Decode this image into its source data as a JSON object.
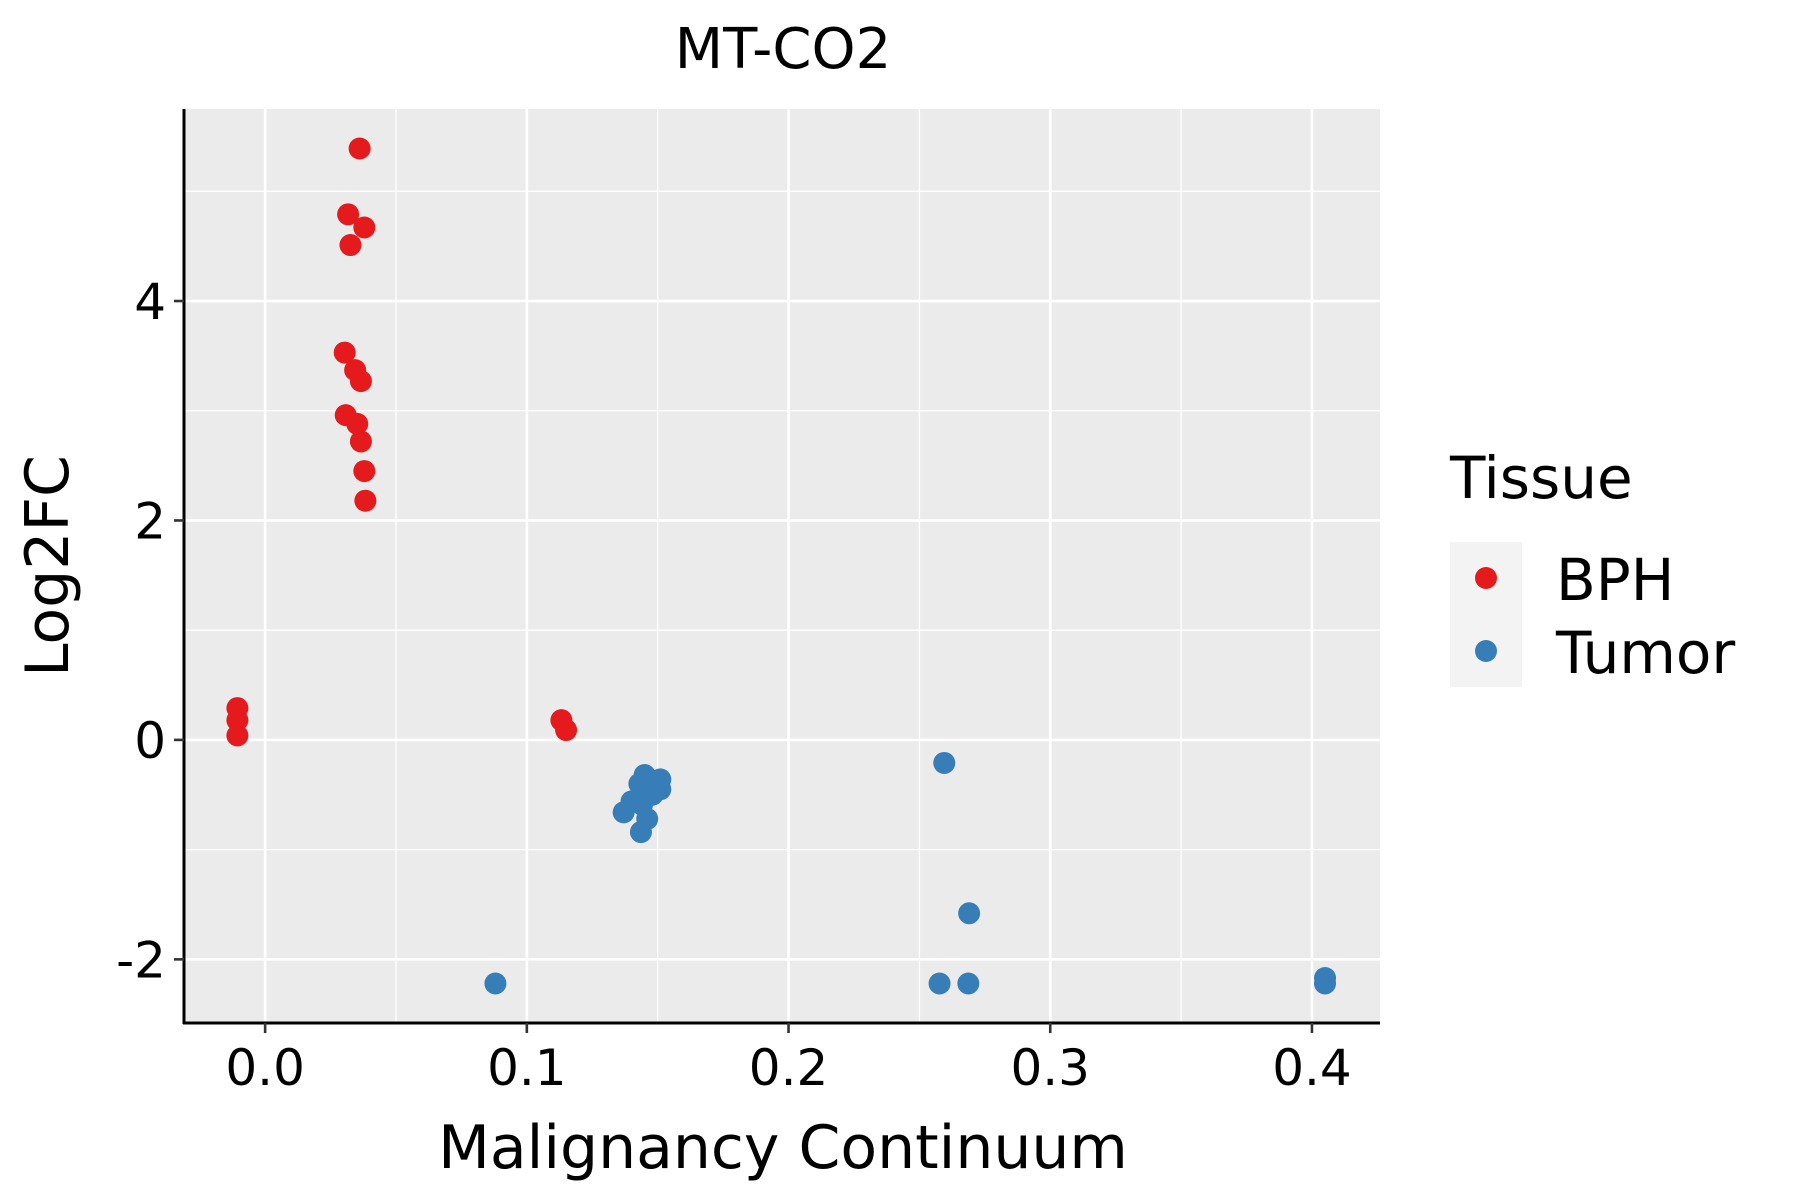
{
  "chart_data": {
    "type": "scatter",
    "title": "MT-CO2",
    "xlabel": "Malignancy Continuum",
    "ylabel": "Log2FC",
    "xlim": [
      -0.031,
      0.426
    ],
    "ylim": [
      -2.58,
      5.75
    ],
    "xticks": [
      0.0,
      0.1,
      0.2,
      0.3,
      0.4
    ],
    "xtick_labels": [
      "0.0",
      "0.1",
      "0.2",
      "0.3",
      "0.4"
    ],
    "yticks": [
      -2,
      0,
      2,
      4
    ],
    "ytick_labels": [
      "-2",
      "0",
      "2",
      "4"
    ],
    "grid": true,
    "legend": {
      "title": "Tissue",
      "placement": "right"
    },
    "series": [
      {
        "name": "BPH",
        "color": "#E41A1C",
        "x": [
          0.0361,
          0.0317,
          0.0379,
          0.0326,
          0.0304,
          0.0344,
          0.0366,
          0.0308,
          0.0352,
          0.0366,
          0.0379,
          0.0383,
          -0.0106,
          -0.0106,
          -0.0106,
          0.1132,
          0.115
        ],
        "y": [
          5.39,
          4.79,
          4.67,
          4.51,
          3.53,
          3.37,
          3.27,
          2.96,
          2.88,
          2.72,
          2.45,
          2.18,
          0.29,
          0.18,
          0.04,
          0.18,
          0.09
        ]
      },
      {
        "name": "Tumor",
        "color": "#377EB8",
        "x": [
          0.088,
          0.2595,
          0.269,
          0.2577,
          0.2687,
          0.405,
          0.405,
          0.145,
          0.151,
          0.143,
          0.151,
          0.148,
          0.14,
          0.144,
          0.146,
          0.137,
          0.1436
        ],
        "y": [
          -2.22,
          -0.21,
          -1.58,
          -2.22,
          -2.22,
          -2.17,
          -2.22,
          -0.32,
          -0.36,
          -0.4,
          -0.45,
          -0.5,
          -0.56,
          -0.59,
          -0.72,
          -0.66,
          -0.84
        ]
      }
    ]
  }
}
